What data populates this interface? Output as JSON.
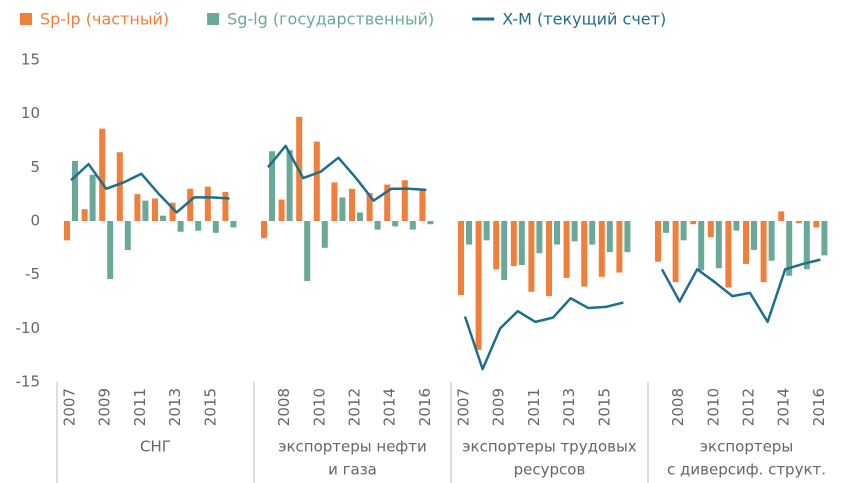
{
  "chart_data": {
    "type": "bar",
    "categories": [
      "2007",
      null,
      "2009",
      null,
      "2011",
      null,
      "2013",
      null,
      "2015",
      null,
      null,
      "2008",
      null,
      "2010",
      null,
      "2012",
      null,
      "2014",
      null,
      "2016",
      "2007",
      null,
      "2009",
      null,
      "2011",
      null,
      "2013",
      null,
      "2015",
      null,
      null,
      "2008",
      null,
      "2010",
      null,
      "2012",
      null,
      "2014",
      null,
      "2016"
    ],
    "groups": [
      [
        "СНГ"
      ],
      [
        "экспортеры нефти",
        "и газа"
      ],
      [
        "экспортеры трудовых",
        "ресурсов"
      ],
      [
        "экспортеры",
        "с диверсиф. структ."
      ]
    ],
    "series": [
      {
        "name": "Sp-lp (частный)",
        "type": "bar",
        "color": "#f07f3c",
        "values": [
          -1.8,
          1.1,
          8.6,
          6.4,
          2.5,
          2.1,
          1.7,
          3.0,
          3.2,
          2.7,
          -1.6,
          2.0,
          9.7,
          7.4,
          3.6,
          3.0,
          2.6,
          3.4,
          3.8,
          2.9,
          -6.9,
          -12.0,
          -4.5,
          -4.2,
          -6.6,
          -7.0,
          -5.3,
          -6.1,
          -5.2,
          -4.8,
          -3.8,
          -5.7,
          -0.3,
          -1.5,
          -6.2,
          -4.0,
          -5.7,
          0.9,
          -0.2,
          -0.6
        ]
      },
      {
        "name": "Sg-lg (государственный)",
        "type": "bar",
        "color": "#6aa89a",
        "values": [
          5.6,
          4.3,
          -5.4,
          -2.7,
          1.9,
          0.5,
          -1.0,
          -0.9,
          -1.1,
          -0.6,
          6.5,
          6.6,
          -5.6,
          -2.5,
          2.2,
          0.8,
          -0.8,
          -0.5,
          -0.8,
          -0.3,
          -2.2,
          -1.8,
          -5.5,
          -4.1,
          -3.0,
          -2.2,
          -1.9,
          -2.2,
          -2.9,
          -2.9,
          -1.1,
          -1.8,
          -4.6,
          -4.4,
          -0.9,
          -2.7,
          -3.7,
          -5.1,
          -4.5,
          -3.2
        ]
      },
      {
        "name": "X-M (текущий счет)",
        "type": "line",
        "color": "#1f6e8c",
        "values": [
          3.8,
          5.3,
          3.0,
          3.6,
          4.4,
          2.5,
          0.8,
          2.2,
          2.2,
          2.1,
          5.0,
          7.0,
          4.0,
          4.6,
          5.9,
          4.0,
          1.9,
          3.0,
          3.0,
          2.9,
          -8.9,
          -13.8,
          -10.0,
          -8.4,
          -9.4,
          -9.0,
          -7.2,
          -8.1,
          -8.0,
          -7.6,
          -4.5,
          -7.5,
          -4.5,
          -5.7,
          -7.0,
          -6.7,
          -9.4,
          -4.5,
          -4.0,
          -3.6
        ]
      }
    ],
    "ylim": [
      -15,
      15
    ],
    "yticks": [
      15,
      10,
      5,
      0,
      -5,
      -10,
      -15
    ],
    "grid": false
  }
}
